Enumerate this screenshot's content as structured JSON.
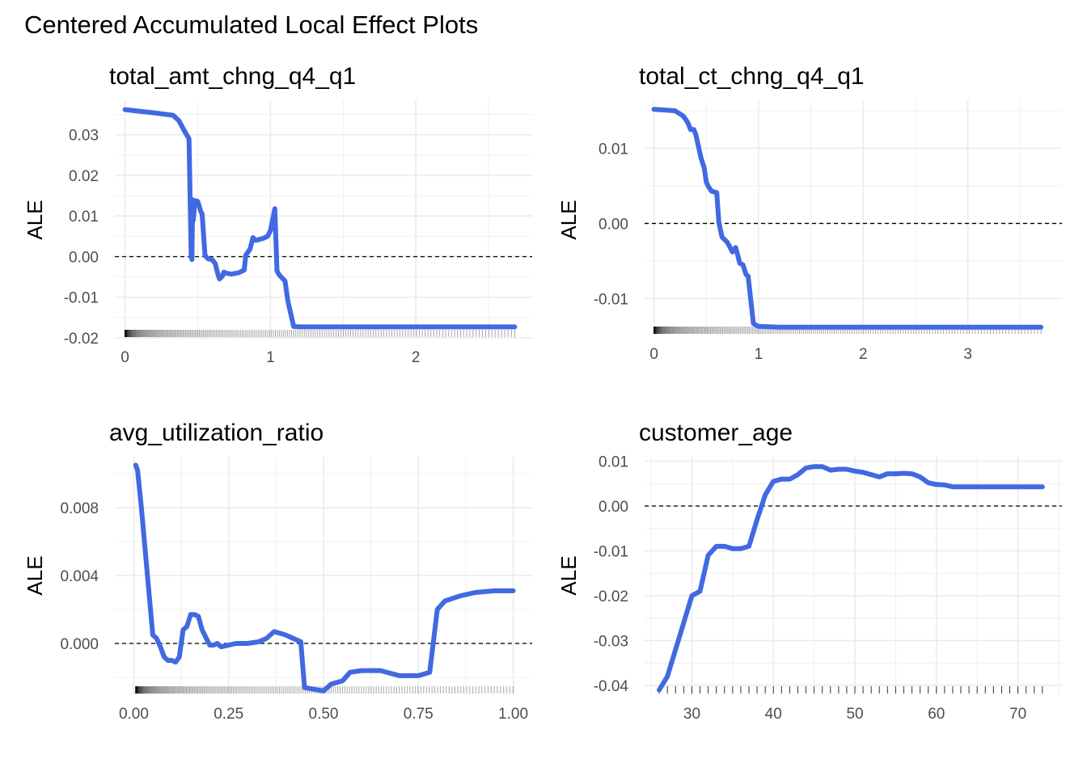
{
  "figure": {
    "title": "Centered Accumulated Local Effect Plots",
    "line_color": "#4169e1",
    "grid_color": "#ebebeb",
    "zero_line_color": "#000000"
  },
  "chart_data": [
    {
      "type": "line",
      "title": "total_amt_chng_q4_q1",
      "ylabel": "ALE",
      "xlabel": "",
      "xlim": [
        -0.07,
        2.8
      ],
      "ylim": [
        -0.02,
        0.0385
      ],
      "x_ticks": [
        0,
        1,
        2
      ],
      "x_tick_labels": [
        "0",
        "1",
        "2"
      ],
      "y_ticks": [
        -0.02,
        -0.01,
        0.0,
        0.01,
        0.02,
        0.03
      ],
      "y_tick_labels": [
        "-0.02",
        "-0.01",
        "0.00",
        "0.01",
        "0.02",
        "0.03"
      ],
      "reference_line": 0,
      "rug": true,
      "series": [
        {
          "x": [
            0.0,
            0.1,
            0.2,
            0.33,
            0.37,
            0.4,
            0.44,
            0.455,
            0.46,
            0.465,
            0.47,
            0.48,
            0.5,
            0.52,
            0.53,
            0.55,
            0.57,
            0.6,
            0.62,
            0.64,
            0.65,
            0.67,
            0.68,
            0.7,
            0.73,
            0.78,
            0.82,
            0.83,
            0.86,
            0.88,
            0.9,
            0.95,
            0.98,
            1.0,
            1.02,
            1.03,
            1.045,
            1.06,
            1.1,
            1.12,
            1.16,
            1.2,
            1.5,
            2.0,
            2.5,
            2.68
          ],
          "y": [
            0.0362,
            0.0358,
            0.0354,
            0.0348,
            0.0335,
            0.0315,
            0.029,
            0.0,
            -0.0007,
            0.014,
            0.009,
            0.0138,
            0.0136,
            0.0112,
            0.0105,
            0.0003,
            -0.0005,
            -0.0008,
            -0.0017,
            -0.0045,
            -0.0055,
            -0.0048,
            -0.0038,
            -0.0041,
            -0.0043,
            -0.004,
            -0.0033,
            0.0003,
            0.0019,
            0.0047,
            0.004,
            0.0045,
            0.005,
            0.0064,
            0.01,
            0.0118,
            -0.0035,
            -0.0045,
            -0.006,
            -0.011,
            -0.0172,
            -0.0173,
            -0.0173,
            -0.0173,
            -0.0173,
            -0.0173
          ]
        }
      ]
    },
    {
      "type": "line",
      "title": "total_ct_chng_q4_q1",
      "ylabel": "ALE",
      "xlabel": "",
      "xlim": [
        -0.09,
        3.9
      ],
      "ylim": [
        -0.0148,
        0.0164
      ],
      "x_ticks": [
        0,
        1,
        2,
        3
      ],
      "x_tick_labels": [
        "0",
        "1",
        "2",
        "3"
      ],
      "y_ticks": [
        -0.01,
        0.0,
        0.01
      ],
      "y_tick_labels": [
        "-0.01",
        "0.00",
        "0.01"
      ],
      "reference_line": 0,
      "rug": true,
      "series": [
        {
          "x": [
            0.0,
            0.1,
            0.2,
            0.28,
            0.32,
            0.35,
            0.38,
            0.4,
            0.45,
            0.48,
            0.5,
            0.52,
            0.55,
            0.6,
            0.62,
            0.65,
            0.7,
            0.72,
            0.75,
            0.78,
            0.8,
            0.82,
            0.85,
            0.88,
            0.9,
            0.95,
            0.97,
            1.0,
            1.2,
            1.5,
            2.0,
            3.0,
            3.7
          ],
          "y": [
            0.0152,
            0.0151,
            0.015,
            0.0143,
            0.0135,
            0.0125,
            0.0125,
            0.0118,
            0.0087,
            0.0074,
            0.0055,
            0.0049,
            0.0043,
            0.0041,
            0.0002,
            -0.0018,
            -0.0025,
            -0.003,
            -0.0038,
            -0.0032,
            -0.0042,
            -0.0053,
            -0.0055,
            -0.0068,
            -0.007,
            -0.0133,
            -0.0135,
            -0.0137,
            -0.0138,
            -0.0138,
            -0.0138,
            -0.0138,
            -0.0138
          ]
        }
      ]
    },
    {
      "type": "line",
      "title": "avg_utilization_ratio",
      "ylabel": "ALE",
      "xlabel": "",
      "xlim": [
        -0.05,
        1.05
      ],
      "ylim": [
        -0.003,
        0.011
      ],
      "x_ticks": [
        0.0,
        0.25,
        0.5,
        0.75,
        1.0
      ],
      "x_tick_labels": [
        "0.00",
        "0.25",
        "0.50",
        "0.75",
        "1.00"
      ],
      "y_ticks": [
        0.0,
        0.004,
        0.008
      ],
      "y_tick_labels": [
        "0.000",
        "0.004",
        "0.008"
      ],
      "reference_line": 0,
      "rug": true,
      "series": [
        {
          "x": [
            0.005,
            0.01,
            0.02,
            0.04,
            0.05,
            0.06,
            0.07,
            0.08,
            0.09,
            0.1,
            0.11,
            0.12,
            0.13,
            0.14,
            0.15,
            0.16,
            0.17,
            0.18,
            0.2,
            0.21,
            0.22,
            0.23,
            0.25,
            0.27,
            0.3,
            0.33,
            0.35,
            0.37,
            0.4,
            0.42,
            0.44,
            0.45,
            0.5,
            0.52,
            0.55,
            0.57,
            0.6,
            0.65,
            0.7,
            0.72,
            0.75,
            0.78,
            0.8,
            0.82,
            0.86,
            0.9,
            0.95,
            1.0
          ],
          "y": [
            0.0105,
            0.0102,
            0.008,
            0.003,
            0.0005,
            0.0003,
            -0.0002,
            -0.0008,
            -0.001,
            -0.001,
            -0.0011,
            -0.0008,
            0.0008,
            0.001,
            0.0017,
            0.0017,
            0.0016,
            0.0008,
            -0.0001,
            -0.0001,
            0.0,
            -0.0002,
            -0.0001,
            0.0,
            0.0,
            0.0001,
            0.0003,
            0.0007,
            0.0005,
            0.0003,
            0.0001,
            -0.0026,
            -0.0028,
            -0.0024,
            -0.0022,
            -0.0017,
            -0.0016,
            -0.0016,
            -0.0019,
            -0.0019,
            -0.0019,
            -0.0017,
            0.002,
            0.0025,
            0.0028,
            0.003,
            0.0031,
            0.0031
          ]
        }
      ]
    },
    {
      "type": "line",
      "title": "customer_age",
      "ylabel": "ALE",
      "xlabel": "",
      "xlim": [
        24.2,
        75.4
      ],
      "ylim": [
        -0.042,
        0.011
      ],
      "x_ticks": [
        30,
        40,
        50,
        60,
        70
      ],
      "x_tick_labels": [
        "30",
        "40",
        "50",
        "60",
        "70"
      ],
      "y_ticks": [
        -0.04,
        -0.03,
        -0.02,
        -0.01,
        0.0,
        0.01
      ],
      "y_tick_labels": [
        "-0.04",
        "-0.03",
        "-0.02",
        "-0.01",
        "0.00",
        "0.01"
      ],
      "reference_line": 0,
      "rug": true,
      "series": [
        {
          "x": [
            26,
            27,
            28,
            29,
            30,
            31,
            32,
            33,
            34,
            35,
            36,
            37,
            38,
            39,
            40,
            41,
            42,
            43,
            44,
            45,
            46,
            47,
            48,
            49,
            50,
            51,
            52,
            53,
            54,
            55,
            56,
            57,
            58,
            59,
            60,
            61,
            62,
            63,
            64,
            65,
            66,
            67,
            68,
            69,
            70,
            71,
            72,
            73
          ],
          "y": [
            -0.041,
            -0.038,
            -0.032,
            -0.026,
            -0.02,
            -0.019,
            -0.011,
            -0.009,
            -0.009,
            -0.0095,
            -0.0095,
            -0.009,
            -0.003,
            0.0025,
            0.0055,
            0.006,
            0.006,
            0.007,
            0.0085,
            0.0088,
            0.0088,
            0.008,
            0.0082,
            0.0082,
            0.0078,
            0.0075,
            0.007,
            0.0065,
            0.0072,
            0.0072,
            0.0073,
            0.0072,
            0.0065,
            0.0052,
            0.0048,
            0.0047,
            0.0043,
            0.0043,
            0.0043,
            0.0043,
            0.0043,
            0.0043,
            0.0043,
            0.0043,
            0.0043,
            0.0043,
            0.0043,
            0.0043
          ]
        }
      ]
    }
  ]
}
